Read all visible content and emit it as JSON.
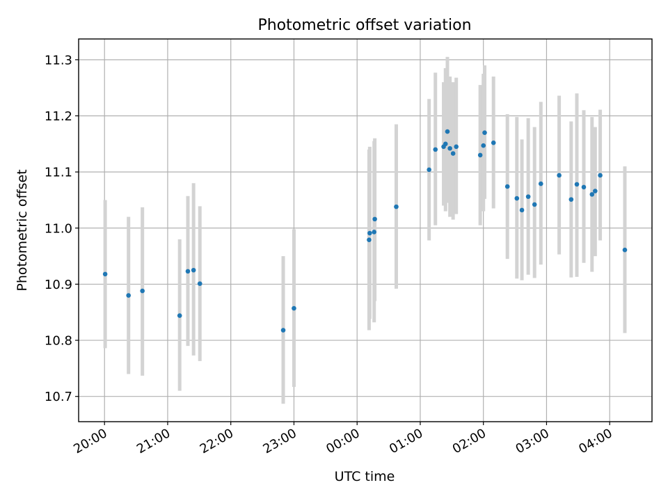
{
  "chart_data": {
    "type": "scatter",
    "title": "Photometric offset variation",
    "xlabel": "UTC time",
    "ylabel": "Photometric offset",
    "x_unit": "hours since 20:00 UTC",
    "xlim": [
      -0.41,
      8.67
    ],
    "ylim": [
      10.655,
      11.337
    ],
    "grid": true,
    "x_ticks": [
      {
        "value": 0,
        "label": "20:00"
      },
      {
        "value": 1,
        "label": "21:00"
      },
      {
        "value": 2,
        "label": "22:00"
      },
      {
        "value": 3,
        "label": "23:00"
      },
      {
        "value": 4,
        "label": "00:00"
      },
      {
        "value": 5,
        "label": "01:00"
      },
      {
        "value": 6,
        "label": "02:00"
      },
      {
        "value": 7,
        "label": "03:00"
      },
      {
        "value": 8,
        "label": "04:00"
      }
    ],
    "y_ticks": [
      {
        "value": 10.7,
        "label": "10.7"
      },
      {
        "value": 10.8,
        "label": "10.8"
      },
      {
        "value": 10.9,
        "label": "10.9"
      },
      {
        "value": 11.0,
        "label": "11.0"
      },
      {
        "value": 11.1,
        "label": "11.1"
      },
      {
        "value": 11.2,
        "label": "11.2"
      },
      {
        "value": 11.3,
        "label": "11.3"
      }
    ],
    "colors": {
      "point": "#1f77b4",
      "errorbar": "#d3d3d3"
    },
    "series": [
      {
        "name": "Photometric offset",
        "points": [
          {
            "x": 0.01,
            "y": 10.918,
            "lo": 10.786,
            "hi": 11.05
          },
          {
            "x": 0.38,
            "y": 10.88,
            "lo": 10.74,
            "hi": 11.02
          },
          {
            "x": 0.6,
            "y": 10.888,
            "lo": 10.737,
            "hi": 11.037
          },
          {
            "x": 1.19,
            "y": 10.844,
            "lo": 10.71,
            "hi": 10.98
          },
          {
            "x": 1.32,
            "y": 10.923,
            "lo": 10.79,
            "hi": 11.057
          },
          {
            "x": 1.41,
            "y": 10.925,
            "lo": 10.773,
            "hi": 11.08
          },
          {
            "x": 1.51,
            "y": 10.901,
            "lo": 10.763,
            "hi": 11.039
          },
          {
            "x": 2.83,
            "y": 10.818,
            "lo": 10.687,
            "hi": 10.95
          },
          {
            "x": 3.0,
            "y": 10.857,
            "lo": 10.717,
            "hi": 10.998
          },
          {
            "x": 4.19,
            "y": 10.979,
            "lo": 10.818,
            "hi": 11.14
          },
          {
            "x": 4.2,
            "y": 10.991,
            "lo": 10.838,
            "hi": 11.145
          },
          {
            "x": 4.27,
            "y": 10.993,
            "lo": 10.832,
            "hi": 11.155
          },
          {
            "x": 4.28,
            "y": 11.016,
            "lo": 10.87,
            "hi": 11.16
          },
          {
            "x": 4.62,
            "y": 11.038,
            "lo": 10.892,
            "hi": 11.185
          },
          {
            "x": 5.14,
            "y": 11.104,
            "lo": 10.978,
            "hi": 11.23
          },
          {
            "x": 5.24,
            "y": 11.14,
            "lo": 11.005,
            "hi": 11.277
          },
          {
            "x": 5.37,
            "y": 11.145,
            "lo": 11.04,
            "hi": 11.26
          },
          {
            "x": 5.4,
            "y": 11.15,
            "lo": 11.03,
            "hi": 11.285
          },
          {
            "x": 5.43,
            "y": 11.172,
            "lo": 11.045,
            "hi": 11.305
          },
          {
            "x": 5.47,
            "y": 11.142,
            "lo": 11.02,
            "hi": 11.27
          },
          {
            "x": 5.52,
            "y": 11.133,
            "lo": 11.015,
            "hi": 11.26
          },
          {
            "x": 5.57,
            "y": 11.145,
            "lo": 11.025,
            "hi": 11.268
          },
          {
            "x": 5.95,
            "y": 11.13,
            "lo": 11.005,
            "hi": 11.255
          },
          {
            "x": 6.0,
            "y": 11.147,
            "lo": 11.03,
            "hi": 11.275
          },
          {
            "x": 6.02,
            "y": 11.17,
            "lo": 11.052,
            "hi": 11.29
          },
          {
            "x": 6.16,
            "y": 11.152,
            "lo": 11.035,
            "hi": 11.27
          },
          {
            "x": 6.38,
            "y": 11.074,
            "lo": 10.945,
            "hi": 11.203
          },
          {
            "x": 6.53,
            "y": 11.053,
            "lo": 10.91,
            "hi": 11.198
          },
          {
            "x": 6.61,
            "y": 11.032,
            "lo": 10.907,
            "hi": 11.158
          },
          {
            "x": 6.71,
            "y": 11.056,
            "lo": 10.917,
            "hi": 11.196
          },
          {
            "x": 6.81,
            "y": 11.042,
            "lo": 10.911,
            "hi": 11.18
          },
          {
            "x": 6.91,
            "y": 11.079,
            "lo": 10.935,
            "hi": 11.225
          },
          {
            "x": 7.2,
            "y": 11.094,
            "lo": 10.953,
            "hi": 11.236
          },
          {
            "x": 7.39,
            "y": 11.051,
            "lo": 10.912,
            "hi": 11.19
          },
          {
            "x": 7.48,
            "y": 11.078,
            "lo": 10.913,
            "hi": 11.24
          },
          {
            "x": 7.59,
            "y": 11.073,
            "lo": 10.938,
            "hi": 11.21
          },
          {
            "x": 7.72,
            "y": 11.06,
            "lo": 10.922,
            "hi": 11.198
          },
          {
            "x": 7.77,
            "y": 11.066,
            "lo": 10.95,
            "hi": 11.18
          },
          {
            "x": 7.85,
            "y": 11.094,
            "lo": 10.978,
            "hi": 11.211
          },
          {
            "x": 8.24,
            "y": 10.961,
            "lo": 10.813,
            "hi": 11.11
          }
        ]
      }
    ]
  }
}
